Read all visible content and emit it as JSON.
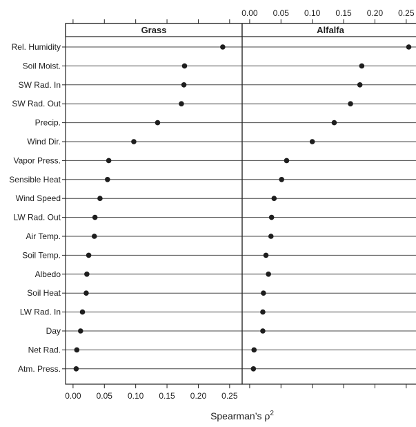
{
  "chart_data": {
    "type": "dotplot",
    "panels": [
      "Grass",
      "Alfalfa"
    ],
    "categories": [
      "Rel. Humidity",
      "Soil Moist.",
      "SW Rad. In",
      "SW Rad. Out",
      "Precip.",
      "Wind Dir.",
      "Vapor Press.",
      "Sensible Heat",
      "Wind Speed",
      "LW Rad. Out",
      "Air Temp.",
      "Soil Temp.",
      "Albedo",
      "Soil Heat",
      "LW Rad. In",
      "Day",
      "Net Rad.",
      "Atm. Press."
    ],
    "series": [
      {
        "name": "Grass",
        "values": [
          0.239,
          0.178,
          0.177,
          0.173,
          0.135,
          0.097,
          0.057,
          0.055,
          0.043,
          0.035,
          0.034,
          0.025,
          0.022,
          0.021,
          0.015,
          0.012,
          0.006,
          0.005
        ]
      },
      {
        "name": "Alfalfa",
        "values": [
          0.254,
          0.179,
          0.176,
          0.161,
          0.135,
          0.1,
          0.059,
          0.051,
          0.039,
          0.035,
          0.034,
          0.026,
          0.03,
          0.022,
          0.021,
          0.021,
          0.007,
          0.006
        ]
      }
    ],
    "xticks": [
      "0.00",
      "0.05",
      "0.10",
      "0.15",
      "0.20",
      "0.25"
    ],
    "xlim": [
      -0.012,
      0.27
    ],
    "xlabel": "Spearman’s ρ",
    "xlabel_superscript": "2",
    "grid": false
  }
}
